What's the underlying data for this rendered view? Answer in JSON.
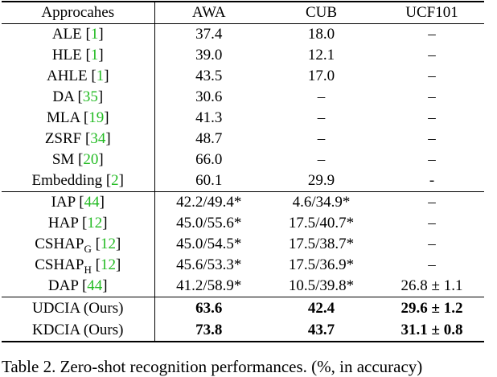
{
  "table": {
    "header": [
      "Approcahes",
      "AWA",
      "CUB",
      "UCF101"
    ],
    "sections": [
      {
        "bold": false,
        "rows": [
          {
            "method": {
              "name": "ALE",
              "cite": "[1]"
            },
            "cells": [
              "37.4",
              "18.0",
              "–"
            ]
          },
          {
            "method": {
              "name": "HLE",
              "cite": "[1]"
            },
            "cells": [
              "39.0",
              "12.1",
              "–"
            ]
          },
          {
            "method": {
              "name": "AHLE",
              "cite": "[1]"
            },
            "cells": [
              "43.5",
              "17.0",
              "–"
            ]
          },
          {
            "method": {
              "name": "DA",
              "cite": "[35]"
            },
            "cells": [
              "30.6",
              "–",
              "–"
            ]
          },
          {
            "method": {
              "name": "MLA",
              "cite": "[19]"
            },
            "cells": [
              "41.3",
              "–",
              "–"
            ]
          },
          {
            "method": {
              "name": "ZSRF",
              "cite": "[34]"
            },
            "cells": [
              "48.7",
              "–",
              "–"
            ]
          },
          {
            "method": {
              "name": "SM",
              "cite": "[20]"
            },
            "cells": [
              "66.0",
              "–",
              "–"
            ]
          },
          {
            "method": {
              "name": "Embedding",
              "cite": "[2]"
            },
            "cells": [
              "60.1",
              "29.9",
              "-"
            ]
          }
        ]
      },
      {
        "bold": false,
        "rows": [
          {
            "method": {
              "name": "IAP",
              "cite": "[44]"
            },
            "cells": [
              "42.2/49.4*",
              "4.6/34.9*",
              "–"
            ]
          },
          {
            "method": {
              "name": "HAP",
              "cite": "[12]"
            },
            "cells": [
              "45.0/55.6*",
              "17.5/40.7*",
              "–"
            ]
          },
          {
            "method": {
              "name": "CSHAP",
              "sub": "G",
              "cite": "[12]"
            },
            "cells": [
              "45.0/54.5*",
              "17.5/38.7*",
              "–"
            ]
          },
          {
            "method": {
              "name": "CSHAP",
              "sub": "H",
              "cite": "[12]"
            },
            "cells": [
              "45.6/53.3*",
              "17.5/36.9*",
              "–"
            ]
          },
          {
            "method": {
              "name": "DAP",
              "cite": "[44]"
            },
            "cells": [
              "41.2/58.9*",
              "10.5/39.8*",
              "26.8 ± 1.1"
            ]
          }
        ]
      },
      {
        "bold": true,
        "rows": [
          {
            "method": {
              "name": "UDCIA (Ours)"
            },
            "cells": [
              "63.6",
              "42.4",
              "29.6 ± 1.2"
            ]
          },
          {
            "method": {
              "name": "KDCIA (Ours)"
            },
            "cells": [
              "73.8",
              "43.7",
              "31.1 ± 0.8"
            ]
          }
        ]
      }
    ]
  },
  "caption": "Table 2. Zero-shot recognition performances. (%, in accuracy)"
}
